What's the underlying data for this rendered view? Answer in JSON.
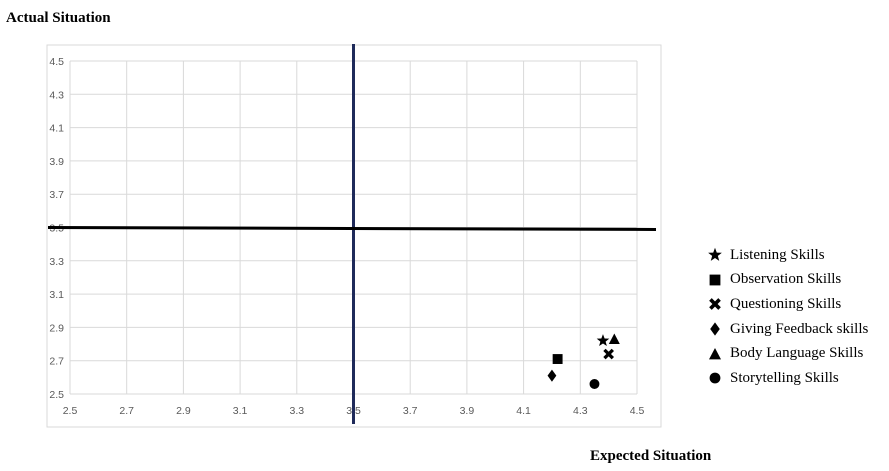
{
  "chart_data": {
    "type": "scatter",
    "ylabel": "Actual Situation",
    "xlabel": "Expected Situation",
    "xlim": [
      2.5,
      4.5
    ],
    "ylim": [
      2.5,
      4.5
    ],
    "x_ticks": [
      "2.5",
      "2.7",
      "2.9",
      "3.1",
      "3.3",
      "3.5",
      "3.7",
      "3.9",
      "4.1",
      "4.3",
      "4.5"
    ],
    "y_ticks": [
      "2.5",
      "2.7",
      "2.9",
      "3.1",
      "3.3",
      "3.5",
      "3.7",
      "3.9",
      "4.1",
      "4.3",
      "4.5"
    ],
    "grid": true,
    "legend_position": "right",
    "reference_lines": {
      "x": 3.5,
      "y": 3.5
    },
    "series": [
      {
        "name": "Listening Skills",
        "marker": "star",
        "x": 4.38,
        "y": 2.82
      },
      {
        "name": "Observation Skills",
        "marker": "square",
        "x": 4.22,
        "y": 2.71
      },
      {
        "name": "Questioning Skills",
        "marker": "x",
        "x": 4.4,
        "y": 2.74
      },
      {
        "name": "Giving Feedback skills",
        "marker": "diamond",
        "x": 4.2,
        "y": 2.61
      },
      {
        "name": "Body Language Skills",
        "marker": "triangle",
        "x": 4.42,
        "y": 2.83
      },
      {
        "name": "Storytelling Skills",
        "marker": "circle",
        "x": 4.35,
        "y": 2.56
      }
    ]
  },
  "colors": {
    "vertical_line": "#1f2a5a",
    "horizontal_line": "#000000",
    "grid": "#d9d9d9",
    "marker": "#000000"
  }
}
